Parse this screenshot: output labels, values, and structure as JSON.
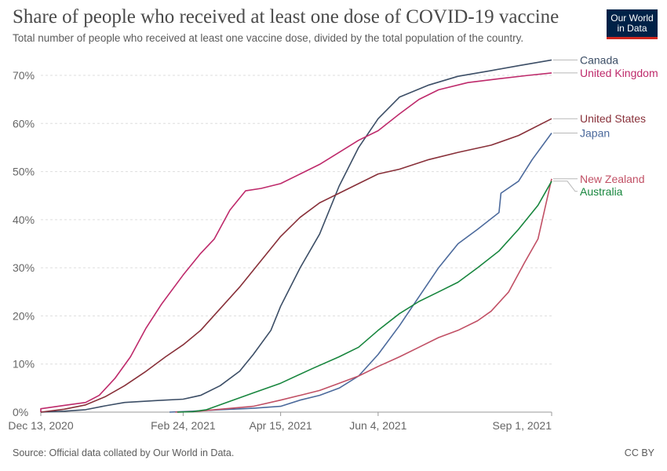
{
  "header": {
    "title": "Share of people who received at least one dose of COVID-19 vaccine",
    "subtitle": "Total number of people who received at least one vaccine dose, divided by the total population of the country."
  },
  "logo": {
    "line1": "Our World",
    "line2": "in Data",
    "bg_color": "#002147",
    "accent_color": "#ce261e"
  },
  "footer": {
    "source": "Source: Official data collated by Our World in Data.",
    "license": "CC BY"
  },
  "chart_data": {
    "type": "line",
    "title": "Share of people who received at least one dose of COVID-19 vaccine",
    "subtitle": "Total number of people who received at least one vaccine dose, divided by the total population of the country.",
    "y_unit": "%",
    "ylim": [
      0,
      70
    ],
    "yticks": [
      0,
      10,
      20,
      30,
      40,
      50,
      60,
      70
    ],
    "ytick_labels": [
      "0%",
      "10%",
      "20%",
      "30%",
      "40%",
      "50%",
      "60%",
      "70%"
    ],
    "xlim": [
      "2020-12-13",
      "2021-09-01"
    ],
    "xticks": [
      "2020-12-13",
      "2021-02-24",
      "2021-04-15",
      "2021-06-04",
      "2021-09-01"
    ],
    "xtick_labels": [
      "Dec 13, 2020",
      "Feb 24, 2021",
      "Apr 15, 2021",
      "Jun 4, 2021",
      "Sep 1, 2021"
    ],
    "grid": "horizontal dashed",
    "legend": "labels at line ends (right)",
    "series": [
      {
        "name": "Canada",
        "color": "#3c4e66",
        "points": [
          [
            "2020-12-13",
            0
          ],
          [
            "2020-12-25",
            0.2
          ],
          [
            "2021-01-05",
            0.5
          ],
          [
            "2021-01-15",
            1.3
          ],
          [
            "2021-01-25",
            2
          ],
          [
            "2021-02-10",
            2.4
          ],
          [
            "2021-02-24",
            2.7
          ],
          [
            "2021-03-05",
            3.5
          ],
          [
            "2021-03-15",
            5.5
          ],
          [
            "2021-03-25",
            8.5
          ],
          [
            "2021-04-01",
            12
          ],
          [
            "2021-04-10",
            17
          ],
          [
            "2021-04-15",
            22
          ],
          [
            "2021-04-25",
            30
          ],
          [
            "2021-05-05",
            37
          ],
          [
            "2021-05-15",
            47
          ],
          [
            "2021-05-25",
            55
          ],
          [
            "2021-06-04",
            61
          ],
          [
            "2021-06-15",
            65.5
          ],
          [
            "2021-06-30",
            68
          ],
          [
            "2021-07-15",
            69.8
          ],
          [
            "2021-08-01",
            71
          ],
          [
            "2021-08-15",
            72
          ],
          [
            "2021-09-01",
            73.2
          ]
        ]
      },
      {
        "name": "United Kingdom",
        "color": "#be2a6b",
        "points": [
          [
            "2020-12-07",
            0
          ],
          [
            "2020-12-13",
            0.7
          ],
          [
            "2020-12-25",
            1.4
          ],
          [
            "2021-01-05",
            2
          ],
          [
            "2021-01-12",
            3.5
          ],
          [
            "2021-01-20",
            7
          ],
          [
            "2021-01-28",
            11.5
          ],
          [
            "2021-02-05",
            17.5
          ],
          [
            "2021-02-13",
            22.5
          ],
          [
            "2021-02-24",
            28.5
          ],
          [
            "2021-03-05",
            33
          ],
          [
            "2021-03-12",
            36
          ],
          [
            "2021-03-20",
            42
          ],
          [
            "2021-03-28",
            46
          ],
          [
            "2021-04-05",
            46.5
          ],
          [
            "2021-04-15",
            47.5
          ],
          [
            "2021-04-25",
            49.5
          ],
          [
            "2021-05-05",
            51.5
          ],
          [
            "2021-05-15",
            54
          ],
          [
            "2021-05-25",
            56.5
          ],
          [
            "2021-06-04",
            58.5
          ],
          [
            "2021-06-15",
            62
          ],
          [
            "2021-06-25",
            65
          ],
          [
            "2021-07-05",
            67
          ],
          [
            "2021-07-20",
            68.5
          ],
          [
            "2021-08-05",
            69.3
          ],
          [
            "2021-08-20",
            70
          ],
          [
            "2021-09-01",
            70.5
          ]
        ]
      },
      {
        "name": "United States",
        "color": "#883039",
        "points": [
          [
            "2020-12-13",
            0
          ],
          [
            "2020-12-25",
            0.6
          ],
          [
            "2021-01-05",
            1.5
          ],
          [
            "2021-01-15",
            3.2
          ],
          [
            "2021-01-25",
            5.5
          ],
          [
            "2021-02-05",
            8.5
          ],
          [
            "2021-02-15",
            11.5
          ],
          [
            "2021-02-24",
            14
          ],
          [
            "2021-03-05",
            17
          ],
          [
            "2021-03-15",
            21.5
          ],
          [
            "2021-03-25",
            26
          ],
          [
            "2021-04-05",
            31.5
          ],
          [
            "2021-04-15",
            36.5
          ],
          [
            "2021-04-25",
            40.5
          ],
          [
            "2021-05-05",
            43.5
          ],
          [
            "2021-05-15",
            45.5
          ],
          [
            "2021-05-25",
            47.5
          ],
          [
            "2021-06-04",
            49.5
          ],
          [
            "2021-06-15",
            50.5
          ],
          [
            "2021-06-30",
            52.5
          ],
          [
            "2021-07-15",
            54
          ],
          [
            "2021-08-01",
            55.5
          ],
          [
            "2021-08-15",
            57.5
          ],
          [
            "2021-09-01",
            61
          ]
        ]
      },
      {
        "name": "Japan",
        "color": "#4c6a9c",
        "points": [
          [
            "2021-02-17",
            0
          ],
          [
            "2021-03-01",
            0.2
          ],
          [
            "2021-03-15",
            0.5
          ],
          [
            "2021-04-01",
            0.8
          ],
          [
            "2021-04-15",
            1.2
          ],
          [
            "2021-04-25",
            2.5
          ],
          [
            "2021-05-05",
            3.5
          ],
          [
            "2021-05-15",
            5
          ],
          [
            "2021-05-25",
            7.5
          ],
          [
            "2021-06-04",
            12
          ],
          [
            "2021-06-15",
            18
          ],
          [
            "2021-06-25",
            24
          ],
          [
            "2021-07-05",
            30
          ],
          [
            "2021-07-15",
            35
          ],
          [
            "2021-07-25",
            38
          ],
          [
            "2021-08-05",
            41.5
          ],
          [
            "2021-08-06",
            45.5
          ],
          [
            "2021-08-15",
            48
          ],
          [
            "2021-08-22",
            52.5
          ],
          [
            "2021-09-01",
            58
          ]
        ]
      },
      {
        "name": "New Zealand",
        "color": "#c15065",
        "points": [
          [
            "2021-02-20",
            0
          ],
          [
            "2021-03-01",
            0.1
          ],
          [
            "2021-03-15",
            0.6
          ],
          [
            "2021-04-01",
            1.2
          ],
          [
            "2021-04-15",
            2.5
          ],
          [
            "2021-04-25",
            3.5
          ],
          [
            "2021-05-05",
            4.5
          ],
          [
            "2021-05-15",
            6
          ],
          [
            "2021-05-25",
            7.5
          ],
          [
            "2021-06-04",
            9.5
          ],
          [
            "2021-06-15",
            11.5
          ],
          [
            "2021-06-25",
            13.5
          ],
          [
            "2021-07-05",
            15.5
          ],
          [
            "2021-07-15",
            17
          ],
          [
            "2021-07-25",
            19
          ],
          [
            "2021-08-01",
            21
          ],
          [
            "2021-08-10",
            25
          ],
          [
            "2021-08-18",
            31
          ],
          [
            "2021-08-25",
            36
          ],
          [
            "2021-09-01",
            48.5
          ]
        ]
      },
      {
        "name": "Australia",
        "color": "#18863e",
        "points": [
          [
            "2021-02-21",
            0
          ],
          [
            "2021-03-01",
            0.1
          ],
          [
            "2021-03-08",
            0.5
          ],
          [
            "2021-04-01",
            4
          ],
          [
            "2021-04-15",
            6
          ],
          [
            "2021-05-01",
            9
          ],
          [
            "2021-05-15",
            11.5
          ],
          [
            "2021-05-25",
            13.5
          ],
          [
            "2021-06-04",
            17
          ],
          [
            "2021-06-15",
            20.5
          ],
          [
            "2021-06-25",
            23
          ],
          [
            "2021-07-05",
            25
          ],
          [
            "2021-07-15",
            27
          ],
          [
            "2021-07-25",
            30
          ],
          [
            "2021-08-05",
            33.5
          ],
          [
            "2021-08-15",
            38
          ],
          [
            "2021-08-25",
            43
          ],
          [
            "2021-09-01",
            48
          ]
        ]
      }
    ]
  }
}
